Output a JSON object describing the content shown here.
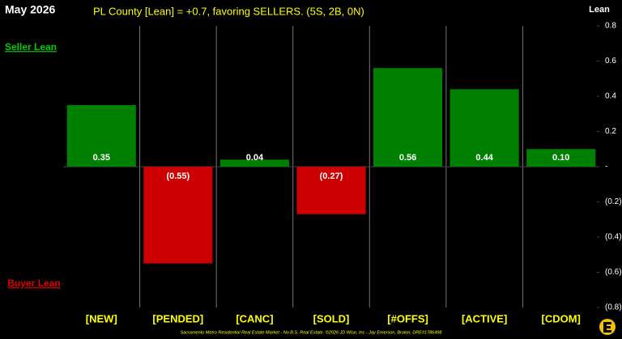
{
  "chart_data": {
    "type": "bar",
    "date_label": "May 2026",
    "title": "PL County [Lean] = +0.7, favoring SELLERS. (5S, 2B, 0N)",
    "y_label": "Lean",
    "seller_label": "Seller Lean",
    "buyer_label": "Buyer Lean",
    "footer": "Sacramento Metro Residential Real Estate Market - No B.S. Real Estate. ©2026 JD Wise, Inc - Jay Emerson, Broker, DRE#1786498",
    "categories": [
      "[NEW]",
      "[PENDED]",
      "[CANC]",
      "[SOLD]",
      "[#OFFS]",
      "[ACTIVE]",
      "[CDOM]"
    ],
    "values": [
      0.35,
      -0.55,
      0.04,
      -0.27,
      0.56,
      0.44,
      0.1
    ],
    "value_labels": [
      "0.35",
      "(0.55)",
      "0.04",
      "(0.27)",
      "0.56",
      "0.44",
      "0.10"
    ],
    "positive_color": "#008000",
    "negative_color": "#cc0000",
    "ylim": [
      -0.8,
      0.8
    ],
    "yticks": [
      {
        "value": 0.8,
        "label": "0.8"
      },
      {
        "value": 0.6,
        "label": "0.6"
      },
      {
        "value": 0.4,
        "label": "0.4"
      },
      {
        "value": 0.2,
        "label": "0.2"
      },
      {
        "value": 0,
        "label": "-"
      },
      {
        "value": -0.2,
        "label": "(0.2)"
      },
      {
        "value": -0.4,
        "label": "(0.4)"
      },
      {
        "value": -0.6,
        "label": "(0.6)"
      },
      {
        "value": -0.8,
        "label": "(0.8)"
      }
    ]
  }
}
